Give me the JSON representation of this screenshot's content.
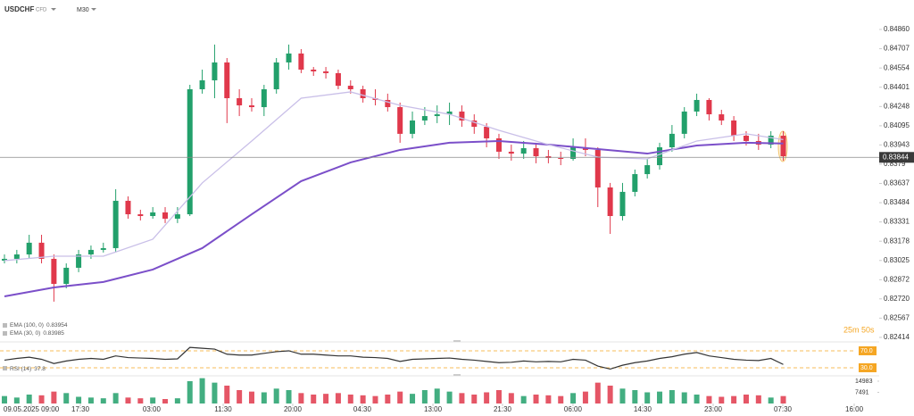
{
  "chart_data": {
    "type": "candlestick",
    "title": "USDCHF",
    "instrument_type": "CFD",
    "timeframe": "M30",
    "up_color": "#22a06b",
    "down_color": "#e0384b",
    "xlim": [
      -0.36,
      70.76
    ],
    "xticks": [
      {
        "value": 2.17,
        "label": "09.05.2025 09:00"
      },
      {
        "value": 6.14,
        "label": "17:30"
      },
      {
        "value": 11.91,
        "label": "03:00"
      },
      {
        "value": 17.69,
        "label": "11:30"
      },
      {
        "value": 23.32,
        "label": "20:00"
      },
      {
        "value": 28.95,
        "label": "04:30"
      },
      {
        "value": 34.66,
        "label": "13:00"
      },
      {
        "value": 40.29,
        "label": "21:30"
      },
      {
        "value": 45.99,
        "label": "06:00"
      },
      {
        "value": 51.62,
        "label": "14:30"
      },
      {
        "value": 57.33,
        "label": "23:00"
      },
      {
        "value": 62.96,
        "label": "07:30"
      },
      {
        "value": 68.74,
        "label": "16:00"
      }
    ],
    "ylim": [
      0.82364,
      0.85094
    ],
    "yticks": [
      {
        "value": 0.8486,
        "label": "0.84860"
      },
      0.84707,
      0.84554,
      0.84401,
      0.84248,
      0.84095,
      0.83943,
      0.8379,
      0.83637,
      0.83484,
      0.83331,
      0.83178,
      0.83025,
      0.82872,
      {
        "value": 0.8272,
        "label": "0.82720"
      },
      0.82567,
      0.82414
    ],
    "open": [
      0.83024,
      0.83038,
      0.83073,
      0.83166,
      0.83038,
      0.82839,
      0.82967,
      0.83073,
      0.83109,
      0.83123,
      0.83499,
      0.83392,
      0.83378,
      0.83407,
      0.83357,
      0.83392,
      0.84385,
      0.84456,
      0.84598,
      0.84314,
      0.84257,
      0.84243,
      0.84385,
      0.84598,
      0.84669,
      0.84541,
      0.84527,
      0.84513,
      0.84413,
      0.84385,
      0.84314,
      0.843,
      0.84243,
      0.84031,
      0.84137,
      0.84172,
      0.84186,
      0.84208,
      0.84137,
      0.84087,
      0.83995,
      0.83889,
      0.83874,
      0.83917,
      0.83853,
      0.83839,
      0.83832,
      0.83924,
      0.83903,
      0.83605,
      0.83378,
      0.8357,
      0.83711,
      0.83782,
      0.83924,
      0.84031,
      0.84208,
      0.843,
      0.84186,
      0.84137,
      0.84016,
      0.83974,
      0.83945,
      0.84016
    ],
    "high": [
      0.83073,
      0.83109,
      0.83229,
      0.83229,
      0.83073,
      0.83002,
      0.83109,
      0.83144,
      0.83166,
      0.83591,
      0.83534,
      0.83428,
      0.83449,
      0.83449,
      0.83449,
      0.8442,
      0.84541,
      0.8474,
      0.84633,
      0.84385,
      0.84314,
      0.8442,
      0.84633,
      0.8474,
      0.84704,
      0.84562,
      0.84562,
      0.84541,
      0.84456,
      0.84413,
      0.84385,
      0.8435,
      0.84279,
      0.84208,
      0.84243,
      0.84257,
      0.84279,
      0.84257,
      0.84186,
      0.84116,
      0.84031,
      0.83945,
      0.83974,
      0.8396,
      0.83903,
      0.83889,
      0.83995,
      0.83995,
      0.83924,
      0.83641,
      0.83641,
      0.83747,
      0.83832,
      0.8396,
      0.84101,
      0.84243,
      0.8435,
      0.84314,
      0.84222,
      0.84172,
      0.84052,
      0.84031,
      0.84052,
      0.84052
    ],
    "low": [
      0.83002,
      0.83002,
      0.83038,
      0.83002,
      0.82698,
      0.82804,
      0.82932,
      0.83038,
      0.83088,
      0.83088,
      0.83357,
      0.83343,
      0.83357,
      0.83322,
      0.83322,
      0.83378,
      0.8435,
      0.84314,
      0.84116,
      0.84172,
      0.84208,
      0.84172,
      0.8435,
      0.84541,
      0.84513,
      0.84491,
      0.8447,
      0.84385,
      0.8435,
      0.84279,
      0.84257,
      0.84208,
      0.8396,
      0.83995,
      0.84101,
      0.84116,
      0.84101,
      0.84087,
      0.84031,
      0.83924,
      0.83832,
      0.83818,
      0.83832,
      0.83797,
      0.83797,
      0.83782,
      0.83818,
      0.83853,
      0.83449,
      0.83236,
      0.83343,
      0.83534,
      0.83676,
      0.83747,
      0.83889,
      0.83995,
      0.84172,
      0.84137,
      0.84101,
      0.83974,
      0.83938,
      0.83903,
      0.83917,
      0.83818
    ],
    "close": [
      0.83038,
      0.83073,
      0.83166,
      0.83038,
      0.82839,
      0.82967,
      0.83073,
      0.83109,
      0.83123,
      0.83499,
      0.83392,
      0.83378,
      0.83407,
      0.83357,
      0.83392,
      0.84385,
      0.84456,
      0.84598,
      0.84314,
      0.84257,
      0.84243,
      0.84385,
      0.84598,
      0.84669,
      0.84541,
      0.84527,
      0.84513,
      0.84413,
      0.84385,
      0.84314,
      0.843,
      0.84243,
      0.84031,
      0.84137,
      0.84172,
      0.84186,
      0.84208,
      0.84137,
      0.84087,
      0.83995,
      0.83889,
      0.83874,
      0.83917,
      0.83853,
      0.83839,
      0.83832,
      0.83924,
      0.83903,
      0.83605,
      0.83378,
      0.8357,
      0.83711,
      0.83782,
      0.83924,
      0.84031,
      0.84208,
      0.843,
      0.84186,
      0.84137,
      0.84016,
      0.83974,
      0.83945,
      0.84016,
      0.83853
    ],
    "current_price": 0.83844,
    "countdown": "25m 50s",
    "series": [
      {
        "name": "EMA (100, 0)",
        "color": "#7b4fc9",
        "x": [
          0,
          4,
          8,
          12,
          16,
          20,
          24,
          28,
          32,
          36,
          40,
          44,
          48,
          52,
          56,
          60,
          63
        ],
        "values": [
          0.8274,
          0.82811,
          0.82854,
          0.82953,
          0.83123,
          0.83392,
          0.83655,
          0.83804,
          0.83903,
          0.8396,
          0.83974,
          0.83945,
          0.8391,
          0.83874,
          0.83938,
          0.8396,
          0.83954
        ]
      },
      {
        "name": "EMA (30, 0)",
        "color": "#c9bfe8",
        "x": [
          0,
          4,
          8,
          12,
          16,
          20,
          24,
          28,
          32,
          36,
          40,
          44,
          48,
          52,
          56,
          60,
          63
        ],
        "values": [
          0.83024,
          0.83059,
          0.83059,
          0.83194,
          0.83641,
          0.83974,
          0.84314,
          0.84364,
          0.84257,
          0.84186,
          0.84059,
          0.83945,
          0.83846,
          0.83832,
          0.83974,
          0.84031,
          0.83985
        ]
      }
    ],
    "rsi": {
      "name": "RSI (14)",
      "color": "#333333",
      "ylim": [
        11,
        91
      ],
      "yticks": [
        {
          "value": 70,
          "label": "70.0"
        },
        {
          "value": 30,
          "label": "30.0"
        }
      ],
      "values": [
        48,
        52,
        55,
        50,
        40,
        46,
        50,
        52,
        50,
        58,
        54,
        53,
        52,
        50,
        51,
        78,
        76,
        74,
        62,
        60,
        60,
        64,
        68,
        70,
        62,
        62,
        60,
        58,
        58,
        55,
        54,
        52,
        45,
        50,
        51,
        52,
        53,
        50,
        48,
        45,
        42,
        43,
        46,
        44,
        45,
        44,
        50,
        48,
        34,
        27,
        36,
        42,
        46,
        52,
        56,
        62,
        66,
        58,
        54,
        50,
        48,
        47,
        52,
        37.8
      ]
    },
    "volume": {
      "ylim": [
        0,
        17980
      ],
      "yticks": [
        7491,
        14983
      ],
      "values": [
        5000,
        4000,
        6000,
        5500,
        8000,
        7000,
        4500,
        4000,
        3500,
        7000,
        4000,
        3500,
        4000,
        3000,
        3500,
        15000,
        17000,
        14000,
        12000,
        9000,
        8000,
        7500,
        10000,
        9000,
        7000,
        6000,
        6500,
        7000,
        6000,
        5500,
        5000,
        6000,
        8000,
        6500,
        9000,
        10000,
        8000,
        7000,
        6000,
        7500,
        9000,
        7000,
        5000,
        6000,
        5500,
        5000,
        7000,
        8000,
        14000,
        12000,
        10000,
        9000,
        7500,
        8000,
        9000,
        7500,
        6000,
        5000,
        4500,
        5000,
        6000,
        5500,
        4000,
        5000
      ]
    }
  }
}
